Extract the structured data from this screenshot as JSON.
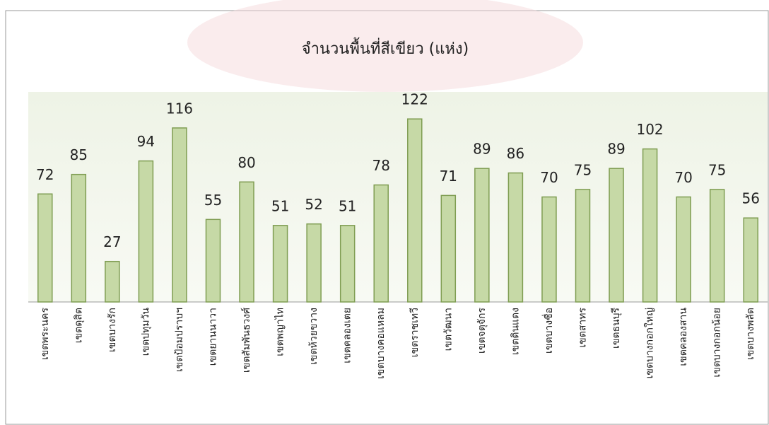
{
  "chart_data": {
    "type": "bar",
    "title": "จำนวนพื้นที่สีเขียว (แห่ง)",
    "categories": [
      "เขตพระนคร",
      "เขตดุสิต",
      "เขตบางรัก",
      "เขตปทุมวัน",
      "เขตป้อมปราบฯ",
      "เขตยานนาวา",
      "เขตสัมพันธวงศ์",
      "เขตพญาไท",
      "เขตห้วยขวาง",
      "เขตคลองเตย",
      "เขตบางคอแหลม",
      "เขตราชเทวี",
      "เขตวัฒนา",
      "เขตจตุจักร",
      "เขตดินแดง",
      "เขตบางซื่อ",
      "เขตสาทร",
      "เขตธนบุรี",
      "เขตบางกอกใหญ่",
      "เขตคลองสาน",
      "เขตบางกอกน้อย",
      "เขตบางพลัด"
    ],
    "values": [
      72,
      85,
      27,
      94,
      116,
      55,
      80,
      51,
      52,
      51,
      78,
      122,
      71,
      89,
      86,
      70,
      75,
      89,
      102,
      70,
      75,
      56
    ],
    "color": "#c6d9a6",
    "ylim": [
      0,
      140
    ]
  }
}
